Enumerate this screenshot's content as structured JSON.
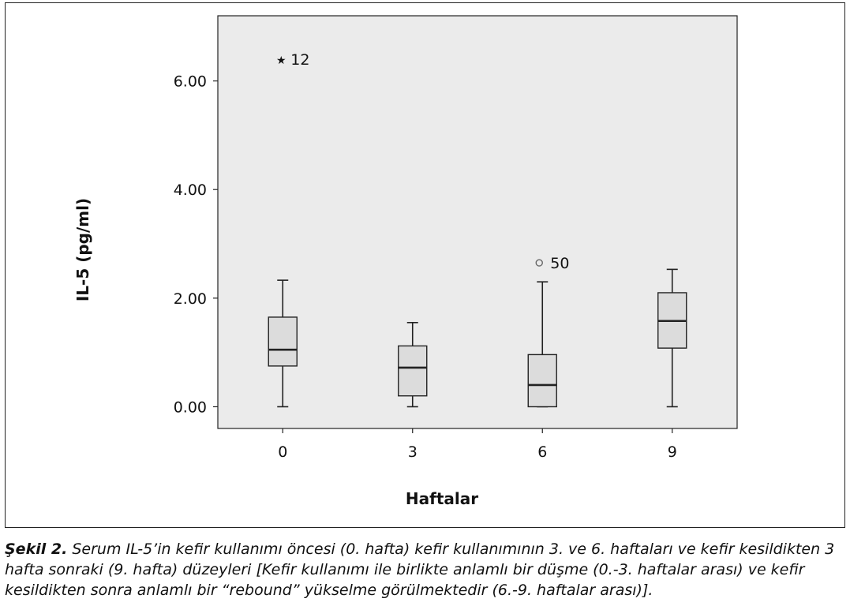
{
  "chart_data": {
    "type": "box",
    "xlabel": "Haftalar",
    "ylabel": "IL-5 (pg/ml)",
    "ylim": [
      -0.4,
      7.2
    ],
    "y_ticks": [
      "0.00",
      "2.00",
      "4.00",
      "6.00"
    ],
    "y_tick_values": [
      0,
      2,
      4,
      6
    ],
    "categories": [
      "0",
      "3",
      "6",
      "9"
    ],
    "boxes": [
      {
        "category": "0",
        "whisker_low": 0.0,
        "q1": 0.75,
        "median": 1.05,
        "q3": 1.65,
        "whisker_high": 2.33
      },
      {
        "category": "3",
        "whisker_low": 0.0,
        "q1": 0.2,
        "median": 0.72,
        "q3": 1.12,
        "whisker_high": 1.55
      },
      {
        "category": "6",
        "whisker_low": 0.0,
        "q1": 0.0,
        "median": 0.4,
        "q3": 0.96,
        "whisker_high": 2.3
      },
      {
        "category": "9",
        "whisker_low": 0.0,
        "q1": 1.08,
        "median": 1.58,
        "q3": 2.1,
        "whisker_high": 2.53
      }
    ],
    "outliers": [
      {
        "category": "0",
        "value": 6.4,
        "label": "12",
        "marker": "star"
      },
      {
        "category": "6",
        "value": 2.65,
        "label": "50",
        "marker": "circle"
      }
    ],
    "grid": false,
    "colors": {
      "plot_bg": "#ebebeb",
      "box_fill": "#dcdcdc",
      "line": "#222222"
    }
  },
  "caption": {
    "label": "Şekil 2.",
    "text": "Serum IL-5’in kefir kullanımı öncesi (0. hafta) kefir kullanımının 3. ve 6. haftaları ve kefir kesildikten 3 hafta sonraki (9. hafta) düzeyleri [Kefir kullanımı ile birlikte anlamlı bir düşme (0.-3. haftalar arası) ve kefir kesildikten sonra anlamlı bir “rebound” yükselme görülmektedir (6.-9. haftalar arası)]."
  }
}
